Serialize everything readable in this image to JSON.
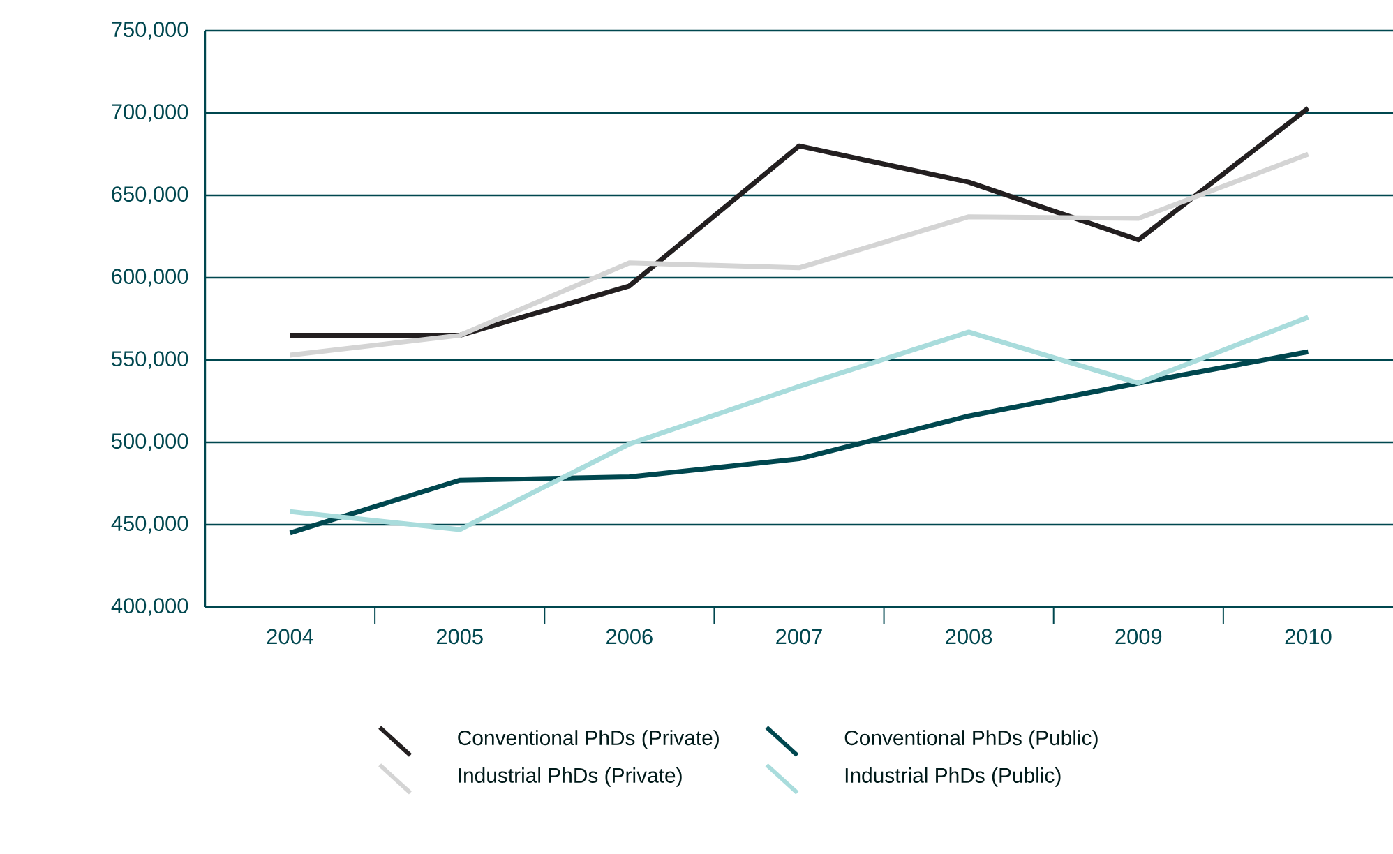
{
  "chart_data": {
    "type": "line",
    "categories": [
      "2004",
      "2005",
      "2006",
      "2007",
      "2008",
      "2009",
      "2010"
    ],
    "series": [
      {
        "name": "Conventional PhDs (Private)",
        "color": "#231f20",
        "values": [
          565000,
          565000,
          595000,
          680000,
          658000,
          623000,
          703000
        ]
      },
      {
        "name": "Conventional PhDs (Public)",
        "color": "#00474f",
        "values": [
          445000,
          477000,
          479000,
          490000,
          516000,
          536000,
          555000
        ]
      },
      {
        "name": "Industrial PhDs (Private)",
        "color": "#d4d4d4",
        "values": [
          553000,
          565000,
          609000,
          606000,
          637000,
          636000,
          675000
        ]
      },
      {
        "name": "Industrial PhDs (Public)",
        "color": "#a9dcdc",
        "values": [
          458000,
          447000,
          499000,
          534000,
          567000,
          536000,
          576000
        ]
      }
    ],
    "ylim": [
      400000,
      750000
    ],
    "yticks": [
      {
        "value": 400000,
        "label": "400,000"
      },
      {
        "value": 450000,
        "label": "450,000"
      },
      {
        "value": 500000,
        "label": "500,000"
      },
      {
        "value": 550000,
        "label": "550,000"
      },
      {
        "value": 600000,
        "label": "600,000"
      },
      {
        "value": 650000,
        "label": "650,000"
      },
      {
        "value": 700000,
        "label": "700,000"
      },
      {
        "value": 750000,
        "label": "750,000"
      }
    ],
    "grid": "y",
    "legend": "bottom",
    "marker": "none",
    "line_style": "solid"
  }
}
